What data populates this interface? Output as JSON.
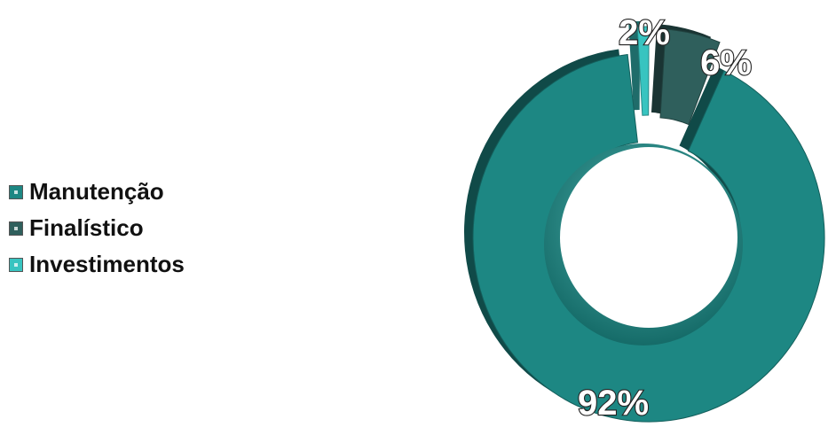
{
  "chart_data": {
    "type": "pie",
    "style": "3d-doughnut",
    "legend_position": "left",
    "categories": [
      "Manutenção",
      "Finalístico",
      "Investimentos"
    ],
    "values": [
      92,
      6,
      2
    ],
    "data_labels": [
      "92%",
      "6%",
      "2%"
    ],
    "colors": [
      "#1d8783",
      "#2f5f5c",
      "#38c4c0"
    ],
    "exploded": [
      "Finalístico",
      "Investimentos"
    ]
  }
}
